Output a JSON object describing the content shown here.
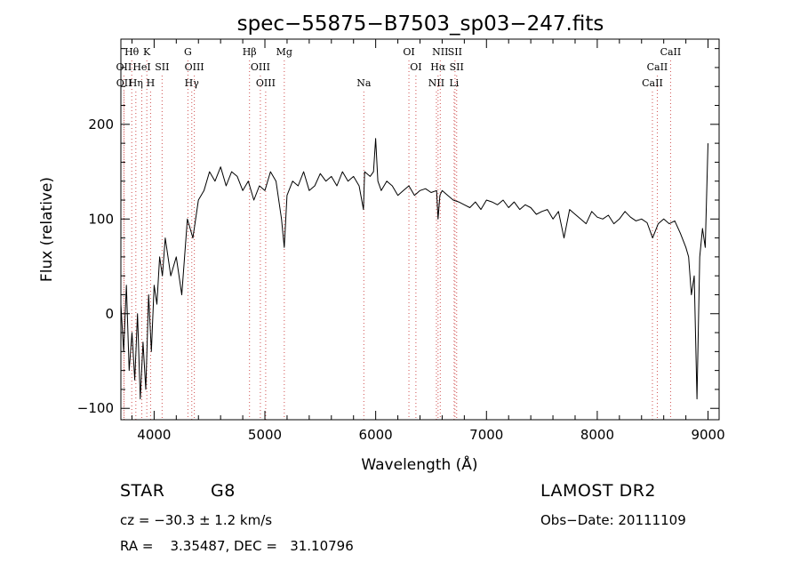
{
  "chart_data": {
    "type": "line",
    "title": "spec−55875−B7503_sp03−247.fits",
    "xlabel": "Wavelength (Å)",
    "ylabel": "Flux (relative)",
    "xlim": [
      3700,
      9100
    ],
    "ylim": [
      -112,
      290
    ],
    "x_ticks": [
      4000,
      5000,
      6000,
      7000,
      8000,
      9000
    ],
    "y_ticks": [
      -100,
      0,
      100,
      200
    ],
    "grid": false,
    "legend": "none",
    "line_color": "#000000",
    "marker_color": "#d05050",
    "series": [
      {
        "x": [
          3700,
          3725,
          3750,
          3775,
          3800,
          3825,
          3850,
          3875,
          3900,
          3925,
          3950,
          3975,
          4000,
          4025,
          4050,
          4075,
          4100,
          4150,
          4200,
          4250,
          4300,
          4350,
          4400,
          4450,
          4500,
          4550,
          4600,
          4650,
          4700,
          4750,
          4800,
          4850,
          4900,
          4950,
          5000,
          5050,
          5100,
          5150,
          5175,
          5200,
          5250,
          5300,
          5350,
          5400,
          5450,
          5500,
          5550,
          5600,
          5650,
          5700,
          5750,
          5800,
          5850,
          5890,
          5900,
          5950,
          5980,
          6000,
          6020,
          6050,
          6100,
          6150,
          6200,
          6250,
          6300,
          6350,
          6400,
          6450,
          6500,
          6550,
          6563,
          6580,
          6600,
          6650,
          6700,
          6750,
          6800,
          6850,
          6900,
          6950,
          7000,
          7050,
          7100,
          7150,
          7200,
          7250,
          7300,
          7350,
          7400,
          7450,
          7500,
          7550,
          7600,
          7650,
          7700,
          7750,
          7800,
          7850,
          7900,
          7950,
          8000,
          8050,
          8100,
          8150,
          8200,
          8250,
          8300,
          8350,
          8400,
          8450,
          8500,
          8550,
          8600,
          8650,
          8700,
          8750,
          8800,
          8825,
          8850,
          8875,
          8900,
          8925,
          8950,
          8975,
          9000
        ],
        "y": [
          10,
          -40,
          30,
          -60,
          -20,
          -70,
          0,
          -90,
          -30,
          -80,
          20,
          -40,
          30,
          10,
          60,
          40,
          80,
          40,
          60,
          20,
          100,
          80,
          120,
          130,
          150,
          140,
          155,
          135,
          150,
          145,
          130,
          140,
          120,
          135,
          130,
          150,
          140,
          100,
          70,
          125,
          140,
          135,
          150,
          130,
          135,
          148,
          140,
          145,
          135,
          150,
          140,
          145,
          135,
          110,
          150,
          145,
          150,
          185,
          140,
          130,
          140,
          135,
          125,
          130,
          135,
          125,
          130,
          132,
          128,
          130,
          100,
          125,
          130,
          125,
          120,
          118,
          115,
          112,
          118,
          110,
          120,
          118,
          115,
          120,
          112,
          118,
          110,
          115,
          112,
          105,
          108,
          110,
          100,
          108,
          80,
          110,
          105,
          100,
          95,
          108,
          102,
          100,
          104,
          95,
          100,
          108,
          102,
          98,
          100,
          96,
          80,
          95,
          100,
          95,
          98,
          85,
          70,
          60,
          20,
          40,
          -90,
          60,
          90,
          70,
          180
        ]
      }
    ],
    "lines": [
      {
        "label": "Hθ",
        "x": 3798,
        "row": 1
      },
      {
        "label": "K",
        "x": 3934,
        "row": 1
      },
      {
        "label": "G",
        "x": 4305,
        "row": 1
      },
      {
        "label": "Hβ",
        "x": 4861,
        "row": 1
      },
      {
        "label": "Mg",
        "x": 5175,
        "row": 1
      },
      {
        "label": "OI",
        "x": 6300,
        "row": 1
      },
      {
        "label": "NII",
        "x": 6583,
        "row": 1
      },
      {
        "label": "SII",
        "x": 6716,
        "row": 1
      },
      {
        "label": "CaII",
        "x": 8662,
        "row": 1
      },
      {
        "label": "OII",
        "x": 3727,
        "row": 2
      },
      {
        "label": "HeI",
        "x": 3889,
        "row": 2
      },
      {
        "label": "SII",
        "x": 4072,
        "row": 2
      },
      {
        "label": "OIII",
        "x": 4363,
        "row": 2
      },
      {
        "label": "OIII",
        "x": 4959,
        "row": 2
      },
      {
        "label": "OI",
        "x": 6363,
        "row": 2
      },
      {
        "label": "Hα",
        "x": 6563,
        "row": 2
      },
      {
        "label": "SII",
        "x": 6731,
        "row": 2
      },
      {
        "label": "CaII",
        "x": 8542,
        "row": 2
      },
      {
        "label": "OII",
        "x": 3729,
        "row": 3
      },
      {
        "label": "Hη",
        "x": 3835,
        "row": 3
      },
      {
        "label": "H",
        "x": 3968,
        "row": 3
      },
      {
        "label": "Hγ",
        "x": 4340,
        "row": 3
      },
      {
        "label": "OIII",
        "x": 5007,
        "row": 3
      },
      {
        "label": "Na",
        "x": 5893,
        "row": 3
      },
      {
        "label": "NII",
        "x": 6548,
        "row": 3
      },
      {
        "label": "Li",
        "x": 6708,
        "row": 3
      },
      {
        "label": "CaII",
        "x": 8498,
        "row": 3
      }
    ]
  },
  "info": {
    "object_class": "STAR",
    "subclass": "G8",
    "survey": "LAMOST DR2",
    "velocity": "cz = −30.3 ± 1.2 km/s",
    "obs_date": "Obs−Date: 20111109",
    "coords": "RA =    3.35487, DEC =   31.10796"
  }
}
